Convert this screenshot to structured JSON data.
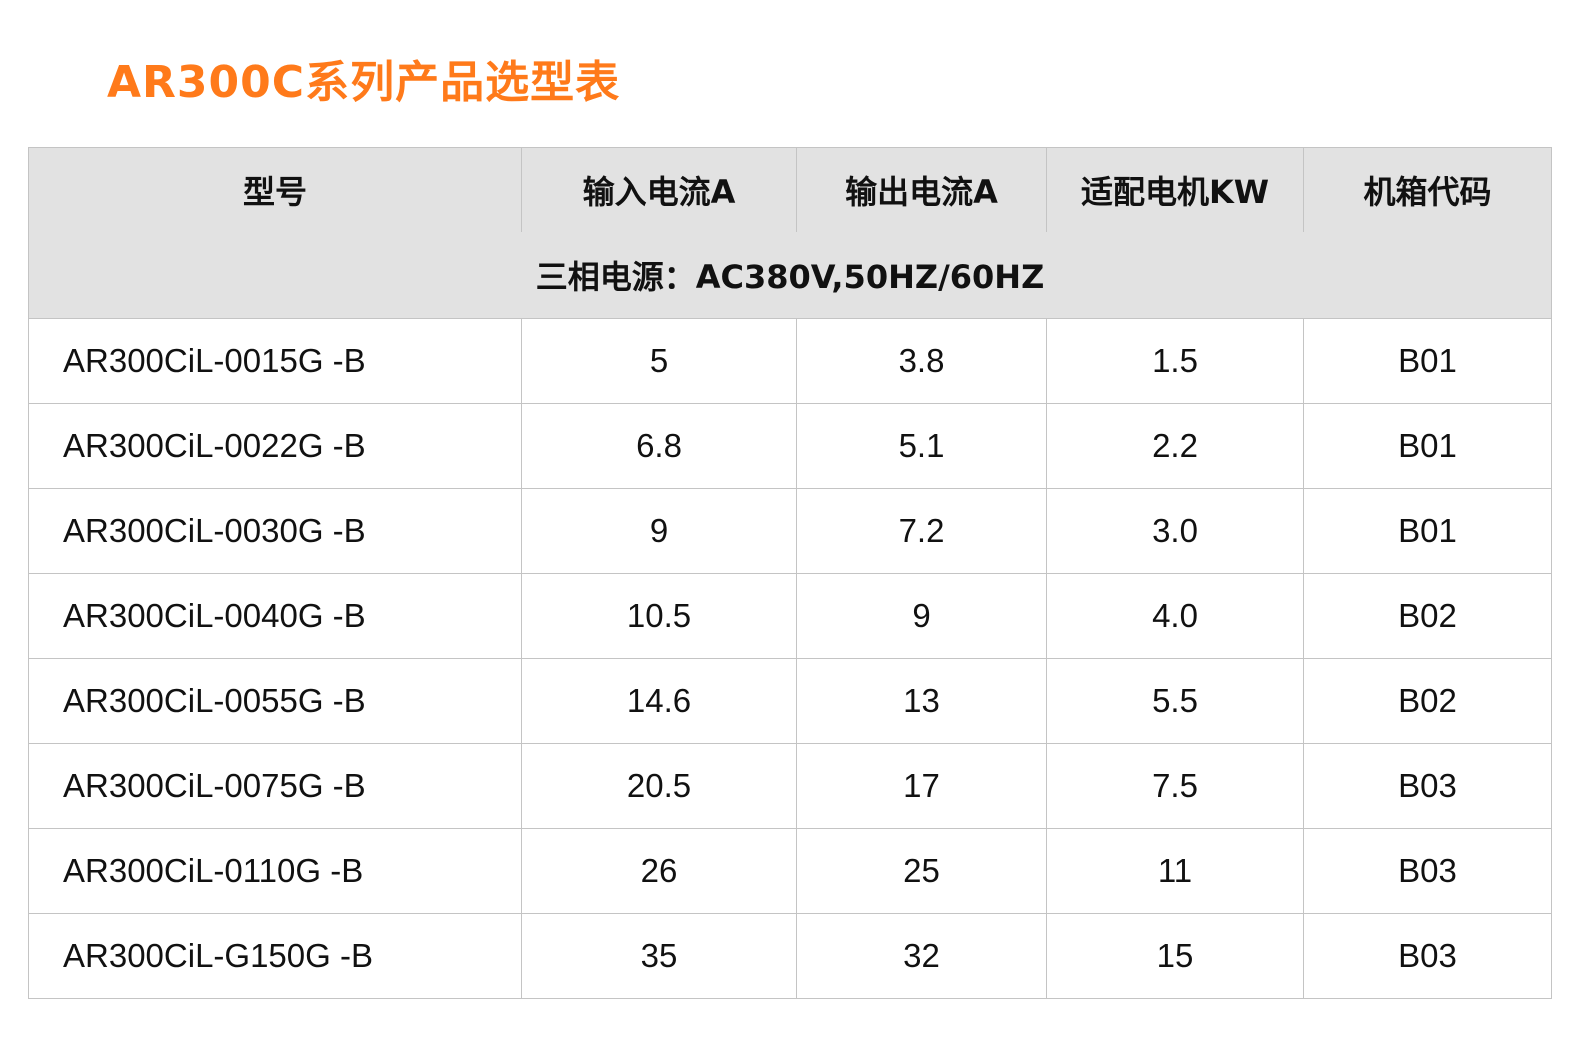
{
  "title": "AR300C系列产品选型表",
  "table": {
    "headers": [
      "型号",
      "输入电流A",
      "输出电流A",
      "适配电机KW",
      "机箱代码"
    ],
    "subheader": "三相电源：AC380V,50HZ/60HZ",
    "rows": [
      [
        "AR300CiL-0015G -B",
        "5",
        "3.8",
        "1.5",
        "B01"
      ],
      [
        "AR300CiL-0022G -B",
        "6.8",
        "5.1",
        "2.2",
        "B01"
      ],
      [
        "AR300CiL-0030G -B",
        "9",
        "7.2",
        "3.0",
        "B01"
      ],
      [
        "AR300CiL-0040G -B",
        "10.5",
        "9",
        "4.0",
        "B02"
      ],
      [
        "AR300CiL-0055G -B",
        "14.6",
        "13",
        "5.5",
        "B02"
      ],
      [
        "AR300CiL-0075G -B",
        "20.5",
        "17",
        "7.5",
        "B03"
      ],
      [
        "AR300CiL-0110G -B",
        "26",
        "25",
        "11",
        "B03"
      ],
      [
        "AR300CiL-G150G -B",
        "35",
        "32",
        "15",
        "B03"
      ]
    ]
  },
  "colors": {
    "title": "#ff7a1a",
    "header_bg": "#e2e2e2",
    "border": "#c4c4c4"
  }
}
